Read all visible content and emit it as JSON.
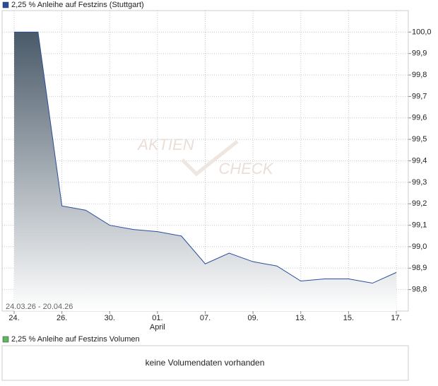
{
  "chart_data": {
    "type": "area",
    "range_label": "24.03.26 - 20.04.26",
    "watermark": [
      "AKTIEN",
      "CHECK"
    ],
    "categories": [
      "24.",
      null,
      "26.",
      null,
      "30.",
      null,
      "01.",
      null,
      "07.",
      null,
      "09.",
      null,
      "13.",
      null,
      "15.",
      null,
      "17."
    ],
    "x_sublabels": [
      null,
      null,
      null,
      null,
      null,
      null,
      "April",
      null,
      null,
      null,
      null,
      null,
      null,
      null,
      null,
      null,
      null
    ],
    "series": [
      {
        "name": "2,25 % Anleihe auf Festzins (Stuttgart)",
        "color": "#2a4d9b",
        "values": [
          100.0,
          100.0,
          99.19,
          99.17,
          99.1,
          99.08,
          99.07,
          99.05,
          98.92,
          98.97,
          98.93,
          98.91,
          98.84,
          98.85,
          98.85,
          98.83,
          98.88
        ]
      }
    ],
    "ylim": [
      98.7,
      100.1
    ],
    "yticks": [
      {
        "value": 100.0,
        "label": "100,0"
      },
      {
        "value": 99.9,
        "label": "99,9"
      },
      {
        "value": 99.8,
        "label": "99,8"
      },
      {
        "value": 99.7,
        "label": "99,7"
      },
      {
        "value": 99.6,
        "label": "99,6"
      },
      {
        "value": 99.5,
        "label": "99,5"
      },
      {
        "value": 99.4,
        "label": "99,4"
      },
      {
        "value": 99.3,
        "label": "99,3"
      },
      {
        "value": 99.2,
        "label": "99,2"
      },
      {
        "value": 99.1,
        "label": "99,1"
      },
      {
        "value": 99.0,
        "label": "99,0"
      },
      {
        "value": 98.9,
        "label": "98,9"
      },
      {
        "value": 98.8,
        "label": "98,8"
      }
    ],
    "grid": true,
    "area_top_color": "#4a5a69",
    "volume_panel": {
      "title": "2,25 % Anleihe auf Festzins Volumen",
      "color": "#5cb85c",
      "message": "keine Volumendaten vorhanden"
    }
  }
}
